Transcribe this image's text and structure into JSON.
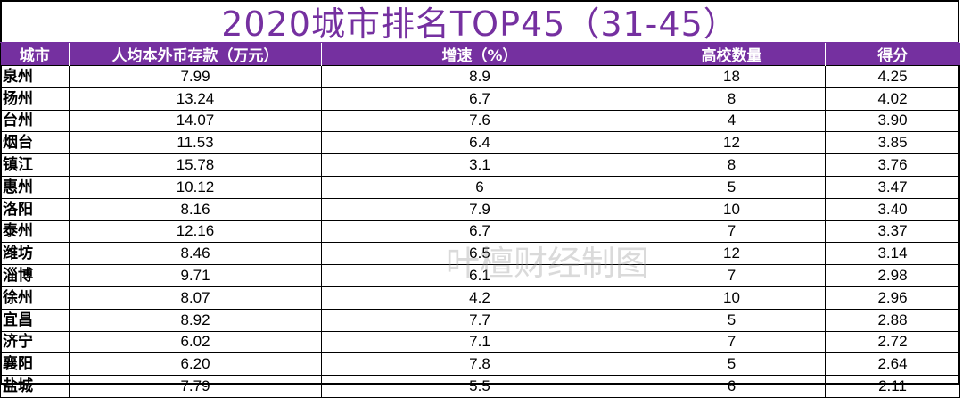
{
  "title": "2020城市排名TOP45（31-45）",
  "colors": {
    "accent": "#7530a0",
    "header_text": "#ffffff",
    "watermark": "#969696"
  },
  "table": {
    "headers": [
      "城市",
      "人均本外币存款（万元）",
      "增速（%）",
      "高校数量",
      "得分"
    ],
    "rows": [
      [
        "泉州",
        "7.99",
        "8.9",
        "18",
        "4.25"
      ],
      [
        "扬州",
        "13.24",
        "6.7",
        "8",
        "4.02"
      ],
      [
        "台州",
        "14.07",
        "7.6",
        "4",
        "3.90"
      ],
      [
        "烟台",
        "11.53",
        "6.4",
        "12",
        "3.85"
      ],
      [
        "镇江",
        "15.78",
        "3.1",
        "8",
        "3.76"
      ],
      [
        "惠州",
        "10.12",
        "6",
        "5",
        "3.47"
      ],
      [
        "洛阳",
        "8.16",
        "7.9",
        "10",
        "3.40"
      ],
      [
        "泰州",
        "12.16",
        "6.7",
        "7",
        "3.37"
      ],
      [
        "潍坊",
        "8.46",
        "6.5",
        "12",
        "3.14"
      ],
      [
        "淄博",
        "9.71",
        "6.1",
        "7",
        "2.98"
      ],
      [
        "徐州",
        "8.07",
        "4.2",
        "10",
        "2.96"
      ],
      [
        "宜昌",
        "8.92",
        "7.7",
        "5",
        "2.88"
      ],
      [
        "济宁",
        "6.02",
        "7.1",
        "7",
        "2.72"
      ],
      [
        "襄阳",
        "6.20",
        "7.8",
        "5",
        "2.64"
      ],
      [
        "盐城",
        "7.79",
        "5.5",
        "6",
        "2.11"
      ]
    ]
  },
  "watermark": "叶檀财经制图"
}
